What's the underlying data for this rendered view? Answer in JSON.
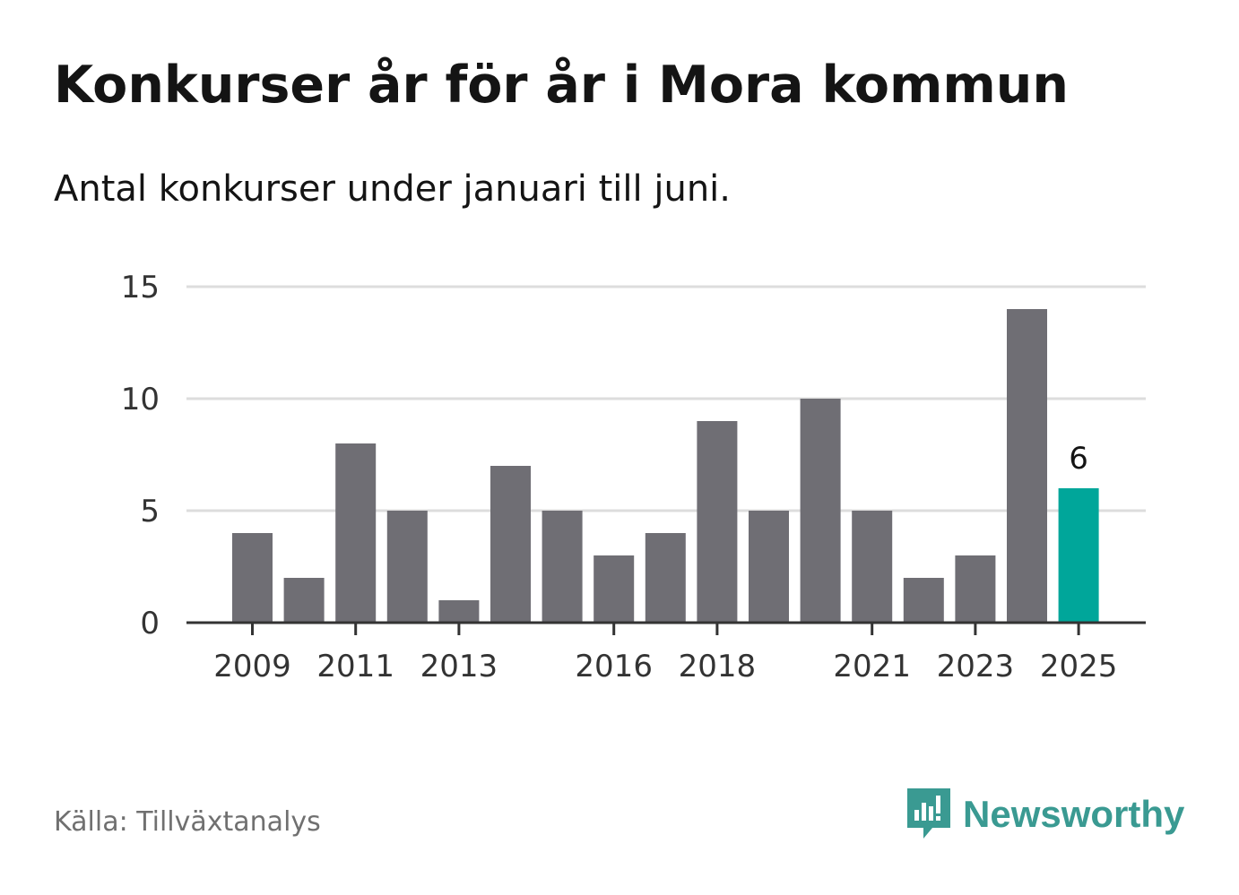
{
  "header": {
    "title": "Konkurser år för år i Mora kommun",
    "subtitle": "Antal konkurser under januari till juni."
  },
  "footer": {
    "source": "Källa: Tillväxtanalys",
    "brand": "Newsworthy"
  },
  "colors": {
    "bar": "#6f6e74",
    "highlight": "#00a69a",
    "grid": "#dddddd",
    "axis": "#333333",
    "brand": "#3a9a92"
  },
  "icons": {
    "brand": "newsworthy-logo-icon"
  },
  "chart_data": {
    "type": "bar",
    "title": "Konkurser år för år i Mora kommun",
    "subtitle": "Antal konkurser under januari till juni.",
    "categories": [
      "2009",
      "2010",
      "2011",
      "2012",
      "2013",
      "2014",
      "2015",
      "2016",
      "2017",
      "2018",
      "2019",
      "2020",
      "2021",
      "2022",
      "2023",
      "2024",
      "2025"
    ],
    "values": [
      4,
      2,
      8,
      5,
      1,
      7,
      5,
      3,
      4,
      9,
      5,
      10,
      5,
      2,
      3,
      14,
      6
    ],
    "highlight_index": 16,
    "data_labels": [
      {
        "index": 16,
        "text": "6"
      }
    ],
    "x_tick_labels": [
      "2009",
      "2011",
      "2013",
      "2016",
      "2018",
      "2021",
      "2023",
      "2025"
    ],
    "y_ticks": [
      0,
      5,
      10,
      15
    ],
    "ylim": [
      0,
      15
    ],
    "xlabel": "",
    "ylabel": "",
    "grid": true,
    "legend": "none"
  }
}
